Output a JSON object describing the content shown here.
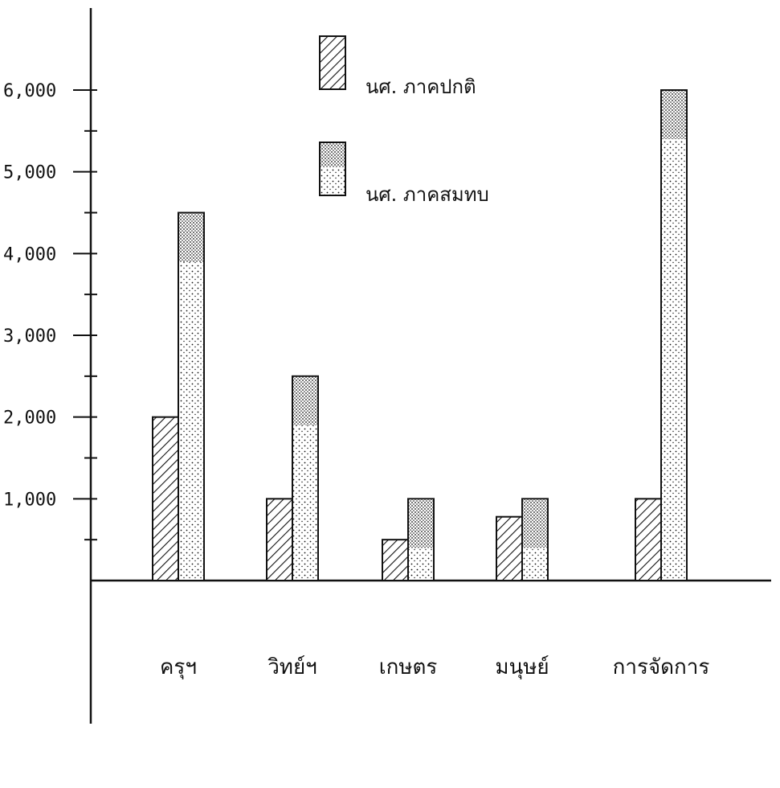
{
  "chart_data": {
    "type": "bar",
    "title": "",
    "xlabel": "",
    "ylabel": "",
    "categories": [
      "ครุฯ",
      "วิทย์ฯ",
      "เกษตร",
      "มนุษย์",
      "การจัดการ"
    ],
    "series": [
      {
        "name": "นศ. ภาคปกติ",
        "pattern": "hatch",
        "values": [
          2000,
          1000,
          500,
          780,
          1000
        ]
      },
      {
        "name": "นศ. ภาคสมทบ",
        "pattern": "dots",
        "values": [
          4500,
          2500,
          1000,
          1000,
          6000
        ]
      }
    ],
    "ylim": [
      0,
      6000
    ],
    "y_tick_labels": [
      "1,000",
      "2,000",
      "3,000",
      "4,000",
      "5,000",
      "6,000"
    ],
    "y_tick_values": [
      1000,
      2000,
      3000,
      4000,
      5000,
      6000
    ],
    "minor_tick_step": 500,
    "grid": false,
    "legend_position": "top-center",
    "colors": {
      "ink": "#111111",
      "background": "#ffffff"
    }
  }
}
